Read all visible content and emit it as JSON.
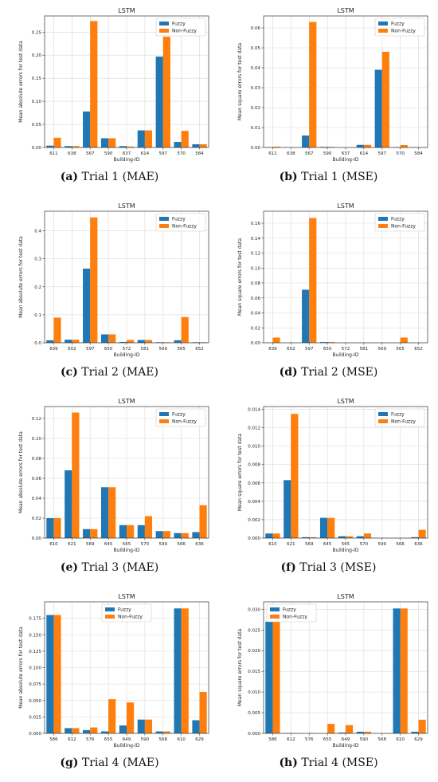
{
  "colors": {
    "fuzzy": "#1f77b4",
    "nonfuzzy": "#ff7f0e"
  },
  "chart_data": [
    {
      "type": "bar",
      "title": "LSTM",
      "caption_letter": "(a)",
      "caption_text": "Trial 1 (MAE)",
      "xlabel": "Building-ID",
      "ylabel": "Mean absolute errors for test data",
      "categories": [
        "611",
        "638",
        "567",
        "590",
        "637",
        "614",
        "597",
        "570",
        "584"
      ],
      "ylim": [
        0,
        0.285
      ],
      "yticks": [
        0,
        0.05,
        0.1,
        0.15,
        0.2,
        0.25
      ],
      "ytick_labels": [
        "0.00",
        "0.05",
        "0.10",
        "0.15",
        "0.20",
        "0.25"
      ],
      "legend_loc": "top-right",
      "series": [
        {
          "name": "Fuzzy",
          "values": [
            0.004,
            0.003,
            0.078,
            0.02,
            0.003,
            0.037,
            0.197,
            0.012,
            0.007
          ]
        },
        {
          "name": "Non-Fuzzy",
          "values": [
            0.021,
            0.003,
            0.274,
            0.02,
            0.002,
            0.037,
            0.24,
            0.036,
            0.007
          ]
        }
      ]
    },
    {
      "type": "bar",
      "title": "LSTM",
      "caption_letter": "(b)",
      "caption_text": "Trial 1 (MSE)",
      "xlabel": "Building-ID",
      "ylabel": "Mean square errors for test data",
      "categories": [
        "611",
        "638",
        "567",
        "590",
        "637",
        "614",
        "597",
        "570",
        "584"
      ],
      "ylim": [
        0,
        0.066
      ],
      "yticks": [
        0,
        0.01,
        0.02,
        0.03,
        0.04,
        0.05,
        0.06
      ],
      "ytick_labels": [
        "0.00",
        "0.01",
        "0.02",
        "0.03",
        "0.04",
        "0.05",
        "0.06"
      ],
      "legend_loc": "top-right",
      "series": [
        {
          "name": "Fuzzy",
          "values": [
            0.0001,
            0.0,
            0.006,
            0.0003,
            0.0,
            0.0013,
            0.039,
            0.0002,
            0.0001
          ]
        },
        {
          "name": "Non-Fuzzy",
          "values": [
            0.0004,
            0.0,
            0.063,
            0.0003,
            0.0,
            0.0013,
            0.048,
            0.0012,
            0.0001
          ]
        }
      ]
    },
    {
      "type": "bar",
      "title": "LSTM",
      "caption_letter": "(c)",
      "caption_text": "Trial 2 (MAE)",
      "xlabel": "Building-ID",
      "ylabel": "Mean absolute errors for test data",
      "categories": [
        "639",
        "602",
        "597",
        "650",
        "572",
        "581",
        "569",
        "565",
        "652"
      ],
      "ylim": [
        0,
        0.47
      ],
      "yticks": [
        0,
        0.1,
        0.2,
        0.3,
        0.4
      ],
      "ytick_labels": [
        "0.0",
        "0.1",
        "0.2",
        "0.3",
        "0.4"
      ],
      "legend_loc": "top-right",
      "series": [
        {
          "name": "Fuzzy",
          "values": [
            0.009,
            0.011,
            0.265,
            0.03,
            0.003,
            0.01,
            0.002,
            0.009,
            0.002
          ]
        },
        {
          "name": "Non-Fuzzy",
          "values": [
            0.09,
            0.011,
            0.448,
            0.03,
            0.01,
            0.01,
            0.002,
            0.092,
            0.002
          ]
        }
      ]
    },
    {
      "type": "bar",
      "title": "LSTM",
      "caption_letter": "(d)",
      "caption_text": "Trial 2 (MSE)",
      "xlabel": "Building-ID",
      "ylabel": "Mean square errors for test data",
      "categories": [
        "639",
        "602",
        "597",
        "650",
        "572",
        "581",
        "569",
        "565",
        "652"
      ],
      "ylim": [
        0,
        0.176
      ],
      "yticks": [
        0,
        0.02,
        0.04,
        0.06,
        0.08,
        0.1,
        0.12,
        0.14,
        0.16
      ],
      "ytick_labels": [
        "0.00",
        "0.02",
        "0.04",
        "0.06",
        "0.08",
        "0.10",
        "0.12",
        "0.14",
        "0.16"
      ],
      "legend_loc": "top-right",
      "series": [
        {
          "name": "Fuzzy",
          "values": [
            0.0001,
            0.0001,
            0.071,
            0.001,
            0.0,
            0.0001,
            0.0,
            0.0001,
            0.0
          ]
        },
        {
          "name": "Non-Fuzzy",
          "values": [
            0.007,
            0.0001,
            0.167,
            0.001,
            0.0001,
            0.0001,
            0.0,
            0.007,
            0.0
          ]
        }
      ]
    },
    {
      "type": "bar",
      "title": "LSTM",
      "caption_letter": "(e)",
      "caption_text": "Trial 3 (MAE)",
      "xlabel": "Building-ID",
      "ylabel": "Mean absolute errors for test data",
      "categories": [
        "610",
        "621",
        "569",
        "645",
        "565",
        "570",
        "599",
        "566",
        "636"
      ],
      "ylim": [
        0,
        0.132
      ],
      "yticks": [
        0,
        0.02,
        0.04,
        0.06,
        0.08,
        0.1,
        0.12
      ],
      "ytick_labels": [
        "0.00",
        "0.02",
        "0.04",
        "0.06",
        "0.08",
        "0.10",
        "0.12"
      ],
      "legend_loc": "top-right",
      "series": [
        {
          "name": "Fuzzy",
          "values": [
            0.02,
            0.068,
            0.009,
            0.051,
            0.013,
            0.013,
            0.007,
            0.005,
            0.006
          ]
        },
        {
          "name": "Non-Fuzzy",
          "values": [
            0.02,
            0.126,
            0.009,
            0.051,
            0.013,
            0.022,
            0.007,
            0.005,
            0.033
          ]
        }
      ]
    },
    {
      "type": "bar",
      "title": "LSTM",
      "caption_letter": "(f)",
      "caption_text": "Trial 3 (MSE)",
      "xlabel": "Building-ID",
      "ylabel": "Mean square errors for test data",
      "categories": [
        "610",
        "621",
        "569",
        "645",
        "565",
        "570",
        "599",
        "566",
        "636"
      ],
      "ylim": [
        0,
        0.0143
      ],
      "yticks": [
        0,
        0.002,
        0.004,
        0.006,
        0.008,
        0.01,
        0.012,
        0.014
      ],
      "ytick_labels": [
        "0.000",
        "0.002",
        "0.004",
        "0.006",
        "0.008",
        "0.010",
        "0.012",
        "0.014"
      ],
      "legend_loc": "top-right",
      "series": [
        {
          "name": "Fuzzy",
          "values": [
            0.0005,
            0.0063,
            0.0001,
            0.0022,
            0.0002,
            0.0002,
            0.0,
            0.0,
            0.0001
          ]
        },
        {
          "name": "Non-Fuzzy",
          "values": [
            0.0005,
            0.0135,
            0.0001,
            0.0022,
            0.0002,
            0.0005,
            0.0,
            0.0,
            0.0009
          ]
        }
      ]
    },
    {
      "type": "bar",
      "title": "LSTM",
      "caption_letter": "(g)",
      "caption_text": "Trial 4 (MAE)",
      "xlabel": "Building-ID",
      "ylabel": "Mean absolute errors for test data",
      "categories": [
        "586",
        "612",
        "576",
        "655",
        "649",
        "590",
        "568",
        "610",
        "629"
      ],
      "ylim": [
        0,
        0.2
      ],
      "yticks": [
        0,
        0.025,
        0.05,
        0.075,
        0.1,
        0.125,
        0.15,
        0.175
      ],
      "ytick_labels": [
        "0.000",
        "0.025",
        "0.050",
        "0.075",
        "0.100",
        "0.125",
        "0.150",
        "0.175"
      ],
      "legend_loc": "top-center",
      "series": [
        {
          "name": "Fuzzy",
          "values": [
            0.18,
            0.008,
            0.005,
            0.003,
            0.012,
            0.021,
            0.003,
            0.19,
            0.02
          ]
        },
        {
          "name": "Non-Fuzzy",
          "values": [
            0.18,
            0.008,
            0.009,
            0.052,
            0.047,
            0.021,
            0.003,
            0.19,
            0.063
          ]
        }
      ]
    },
    {
      "type": "bar",
      "title": "LSTM",
      "caption_letter": "(h)",
      "caption_text": "Trial 4 (MSE)",
      "xlabel": "Building-ID",
      "ylabel": "Mean square errors for test data",
      "categories": [
        "586",
        "612",
        "576",
        "655",
        "649",
        "590",
        "568",
        "610",
        "629"
      ],
      "ylim": [
        0,
        0.0318
      ],
      "yticks": [
        0,
        0.005,
        0.01,
        0.015,
        0.02,
        0.025,
        0.03
      ],
      "ytick_labels": [
        "0.000",
        "0.005",
        "0.010",
        "0.015",
        "0.020",
        "0.025",
        "0.030"
      ],
      "legend_loc": "top-left",
      "series": [
        {
          "name": "Fuzzy",
          "values": [
            0.027,
            0.0001,
            0.0,
            0.0,
            0.0002,
            0.0004,
            0.0,
            0.0302,
            0.0004
          ]
        },
        {
          "name": "Non-Fuzzy",
          "values": [
            0.027,
            0.0001,
            0.0001,
            0.0023,
            0.002,
            0.0004,
            0.0,
            0.0302,
            0.0033
          ]
        }
      ]
    }
  ]
}
